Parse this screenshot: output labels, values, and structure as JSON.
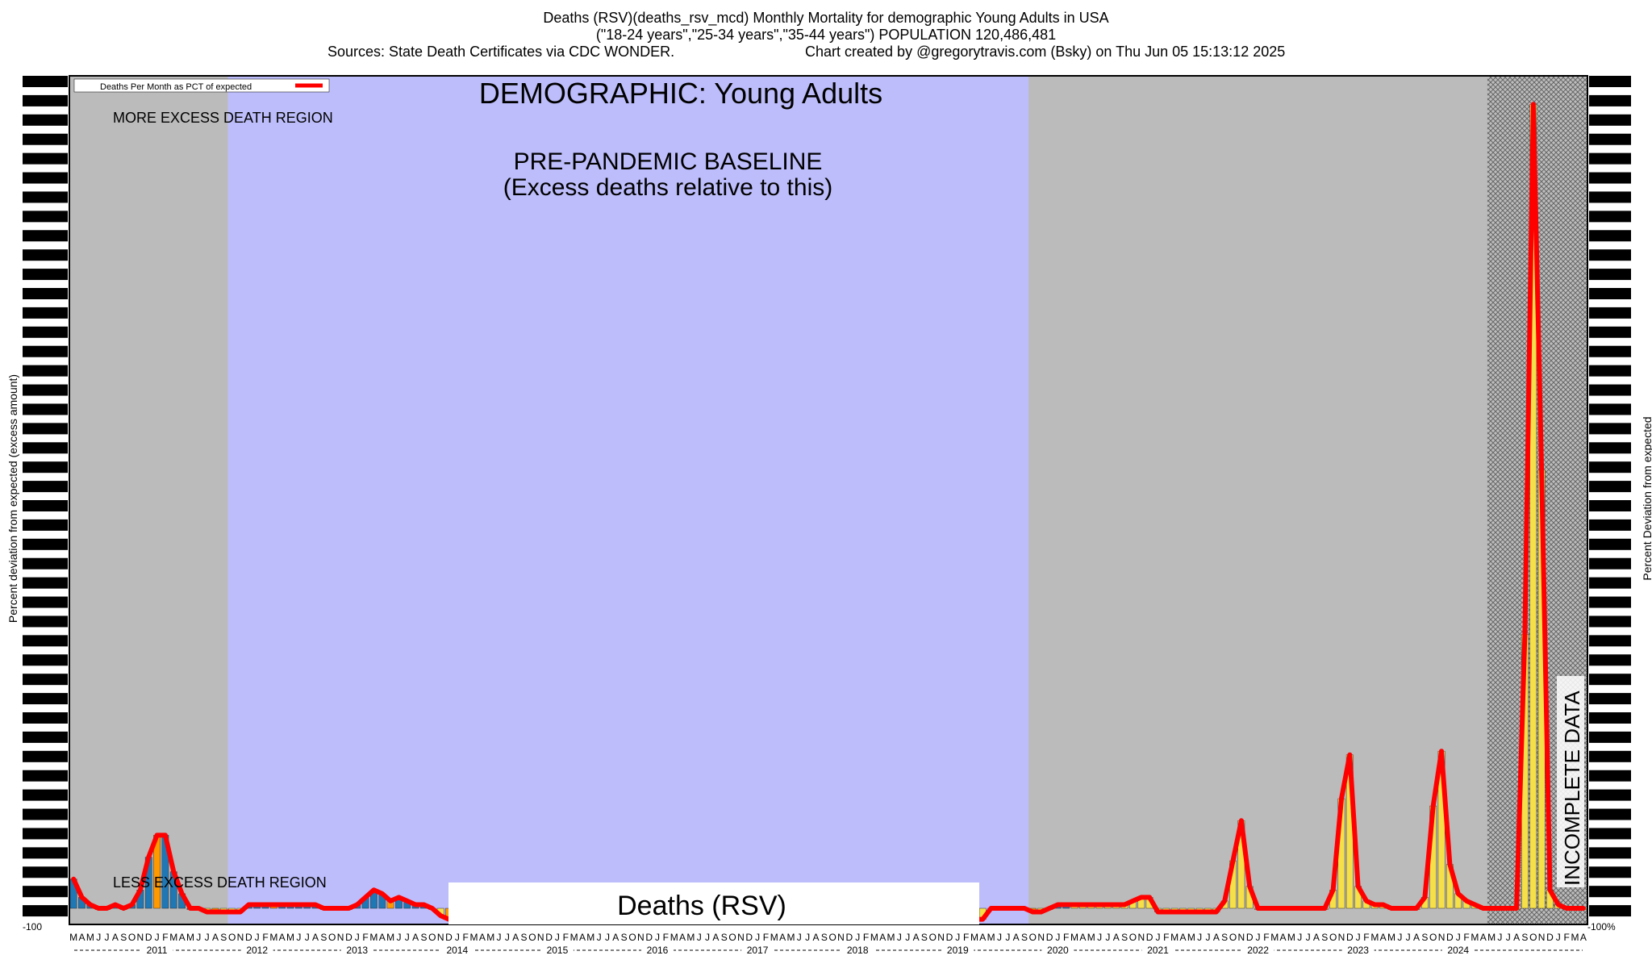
{
  "header": {
    "line1": "Deaths (RSV)(deaths_rsv_mcd) Monthly Mortality for demographic Young Adults in USA",
    "line2": "(\"18-24 years\",\"25-34 years\",\"35-44 years\") POPULATION 120,486,481",
    "line3_left": "Sources: State Death Certificates via CDC WONDER.",
    "line3_right": "Chart created by @gregorytravis.com (Bsky) on Thu Jun 05 15:13:12 2025"
  },
  "chart_data": {
    "type": "bar",
    "title": "DEMOGRAPHIC: Young Adults",
    "xlabel": "",
    "ylabel_left": "Percent deviation from expected (excess amount)",
    "ylabel_right": "Percent Deviation from expected",
    "legend": {
      "label": "Deaths Per Month as PCT of expected",
      "color": "#ff0000",
      "position": "top-left"
    },
    "regions": {
      "more_excess": "MORE EXCESS DEATH REGION",
      "less_excess": "LESS EXCESS DEATH REGION",
      "baseline_line1": "PRE-PANDEMIC BASELINE",
      "baseline_line2": "(Excess deaths relative to this)",
      "incomplete": "INCOMPLETE DATA",
      "caption": "Deaths (RSV)"
    },
    "baseline_period": [
      "2011-10",
      "2019-09"
    ],
    "incomplete_period": [
      "2024-05",
      "2024-12"
    ],
    "years": [
      "2011",
      "2012",
      "2013",
      "2014",
      "2015",
      "2016",
      "2017",
      "2018",
      "2019",
      "2020",
      "2021",
      "2022",
      "2023",
      "2024"
    ],
    "month_letters": [
      "J",
      "F",
      "M",
      "A",
      "M",
      "J",
      "J",
      "A",
      "S",
      "O",
      "N",
      "D"
    ],
    "first_month": "2010-03",
    "left_tick_label": "-100",
    "right_tick_label": "-100%",
    "values": [
      8,
      3,
      1,
      0,
      0,
      1,
      0,
      1,
      5,
      14,
      20,
      20,
      10,
      4,
      0,
      0,
      -1,
      -1,
      -1,
      -1,
      -1,
      1,
      1,
      1,
      1,
      1,
      1,
      1,
      1,
      1,
      0,
      0,
      0,
      0,
      1,
      3,
      5,
      4,
      2,
      3,
      2,
      1,
      1,
      0,
      -2,
      -3,
      -3,
      -3,
      -3,
      -3,
      -3,
      -3,
      -3,
      -3,
      -3,
      -3,
      -3,
      -3,
      -3,
      -3,
      -3,
      -3,
      -3,
      -3,
      -3,
      -3,
      -3,
      -3,
      -3,
      -3,
      -3,
      -3,
      -3,
      -3,
      -3,
      -3,
      -3,
      -3,
      -3,
      -3,
      -3,
      -3,
      -3,
      -3,
      -3,
      -3,
      -3,
      -3,
      -3,
      -3,
      -3,
      -3,
      -3,
      -3,
      -3,
      -3,
      -3,
      -3,
      -3,
      -3,
      -3,
      -3,
      -3,
      -3,
      -3,
      -3,
      -3,
      -3,
      -3,
      -3,
      0,
      0,
      0,
      0,
      0,
      -1,
      -1,
      0,
      1,
      1,
      1,
      1,
      1,
      1,
      1,
      1,
      1,
      2,
      3,
      3,
      -1,
      -1,
      -1,
      -1,
      -1,
      -1,
      -1,
      -1,
      2,
      13,
      24,
      6,
      0,
      0,
      0,
      0,
      0,
      0,
      0,
      0,
      0,
      5,
      30,
      42,
      6,
      2,
      1,
      1,
      0,
      0,
      0,
      0,
      3,
      28,
      43,
      12,
      4,
      2,
      1,
      0,
      0,
      0,
      0,
      0,
      75,
      220,
      120,
      5,
      1,
      0,
      0,
      0
    ],
    "ylim": [
      -100,
      100
    ]
  }
}
